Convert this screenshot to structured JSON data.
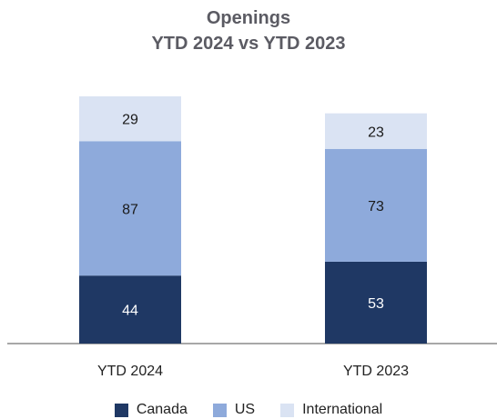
{
  "chart_data": {
    "type": "bar",
    "stacked": true,
    "title": "Openings",
    "subtitle": "YTD 2024 vs YTD 2023",
    "categories": [
      "YTD 2024",
      "YTD 2023"
    ],
    "series": [
      {
        "name": "Canada",
        "values": [
          44,
          53
        ],
        "color": "#1f3864",
        "label_color": "#ffffff"
      },
      {
        "name": "US",
        "values": [
          87,
          73
        ],
        "color": "#8eaadb",
        "label_color": "#1a1a1a"
      },
      {
        "name": "International",
        "values": [
          29,
          23
        ],
        "color": "#dae3f3",
        "label_color": "#1a1a1a"
      }
    ],
    "ylim": [
      0,
      160
    ],
    "grid": false,
    "legend_position": "bottom"
  }
}
